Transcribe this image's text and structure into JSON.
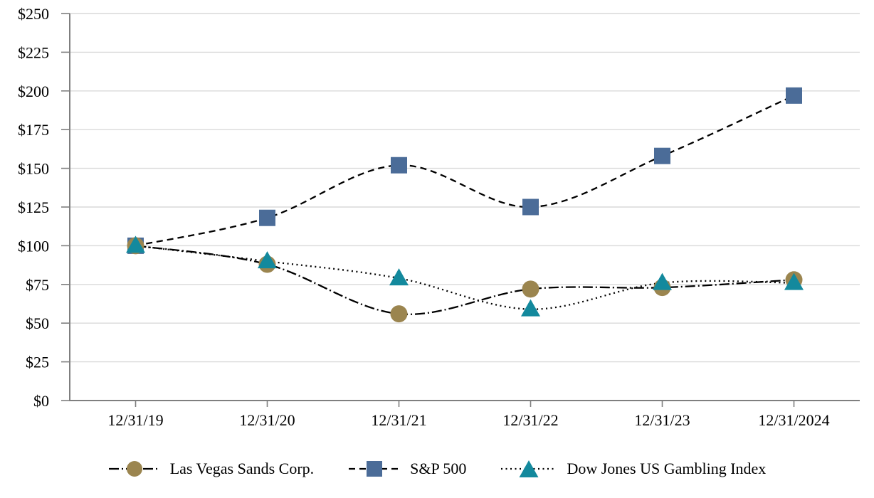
{
  "chart_data": {
    "type": "line",
    "title": "",
    "xlabel": "",
    "ylabel": "",
    "categories": [
      "12/31/19",
      "12/31/20",
      "12/31/21",
      "12/31/22",
      "12/31/23",
      "12/31/2024"
    ],
    "series": [
      {
        "name": "Las Vegas Sands Corp.",
        "values": [
          100,
          88,
          56,
          72,
          73,
          78
        ],
        "line_style": "dash-dot",
        "marker": "circle",
        "marker_color": "#9B854F"
      },
      {
        "name": "S&P 500",
        "values": [
          100,
          118,
          152,
          125,
          158,
          197
        ],
        "line_style": "dashed",
        "marker": "square",
        "marker_color": "#4B6C98"
      },
      {
        "name": "Dow Jones US Gambling Index",
        "values": [
          100,
          90,
          79,
          59,
          76,
          76
        ],
        "line_style": "dotted",
        "marker": "triangle",
        "marker_color": "#13899D"
      }
    ],
    "ylim": [
      0,
      250
    ],
    "ytick_step": 25,
    "ytick_labels": [
      "$0",
      "$25",
      "$50",
      "$75",
      "$100",
      "$125",
      "$150",
      "$175",
      "$200",
      "$225",
      "$250"
    ],
    "grid": "horizontal",
    "smoothed_lines": true,
    "legend_position": "bottom",
    "line_color": "#000000",
    "gridline_color": "#D9D9D9",
    "axis_color": "#7F7F7F",
    "text_color": "#000000"
  }
}
